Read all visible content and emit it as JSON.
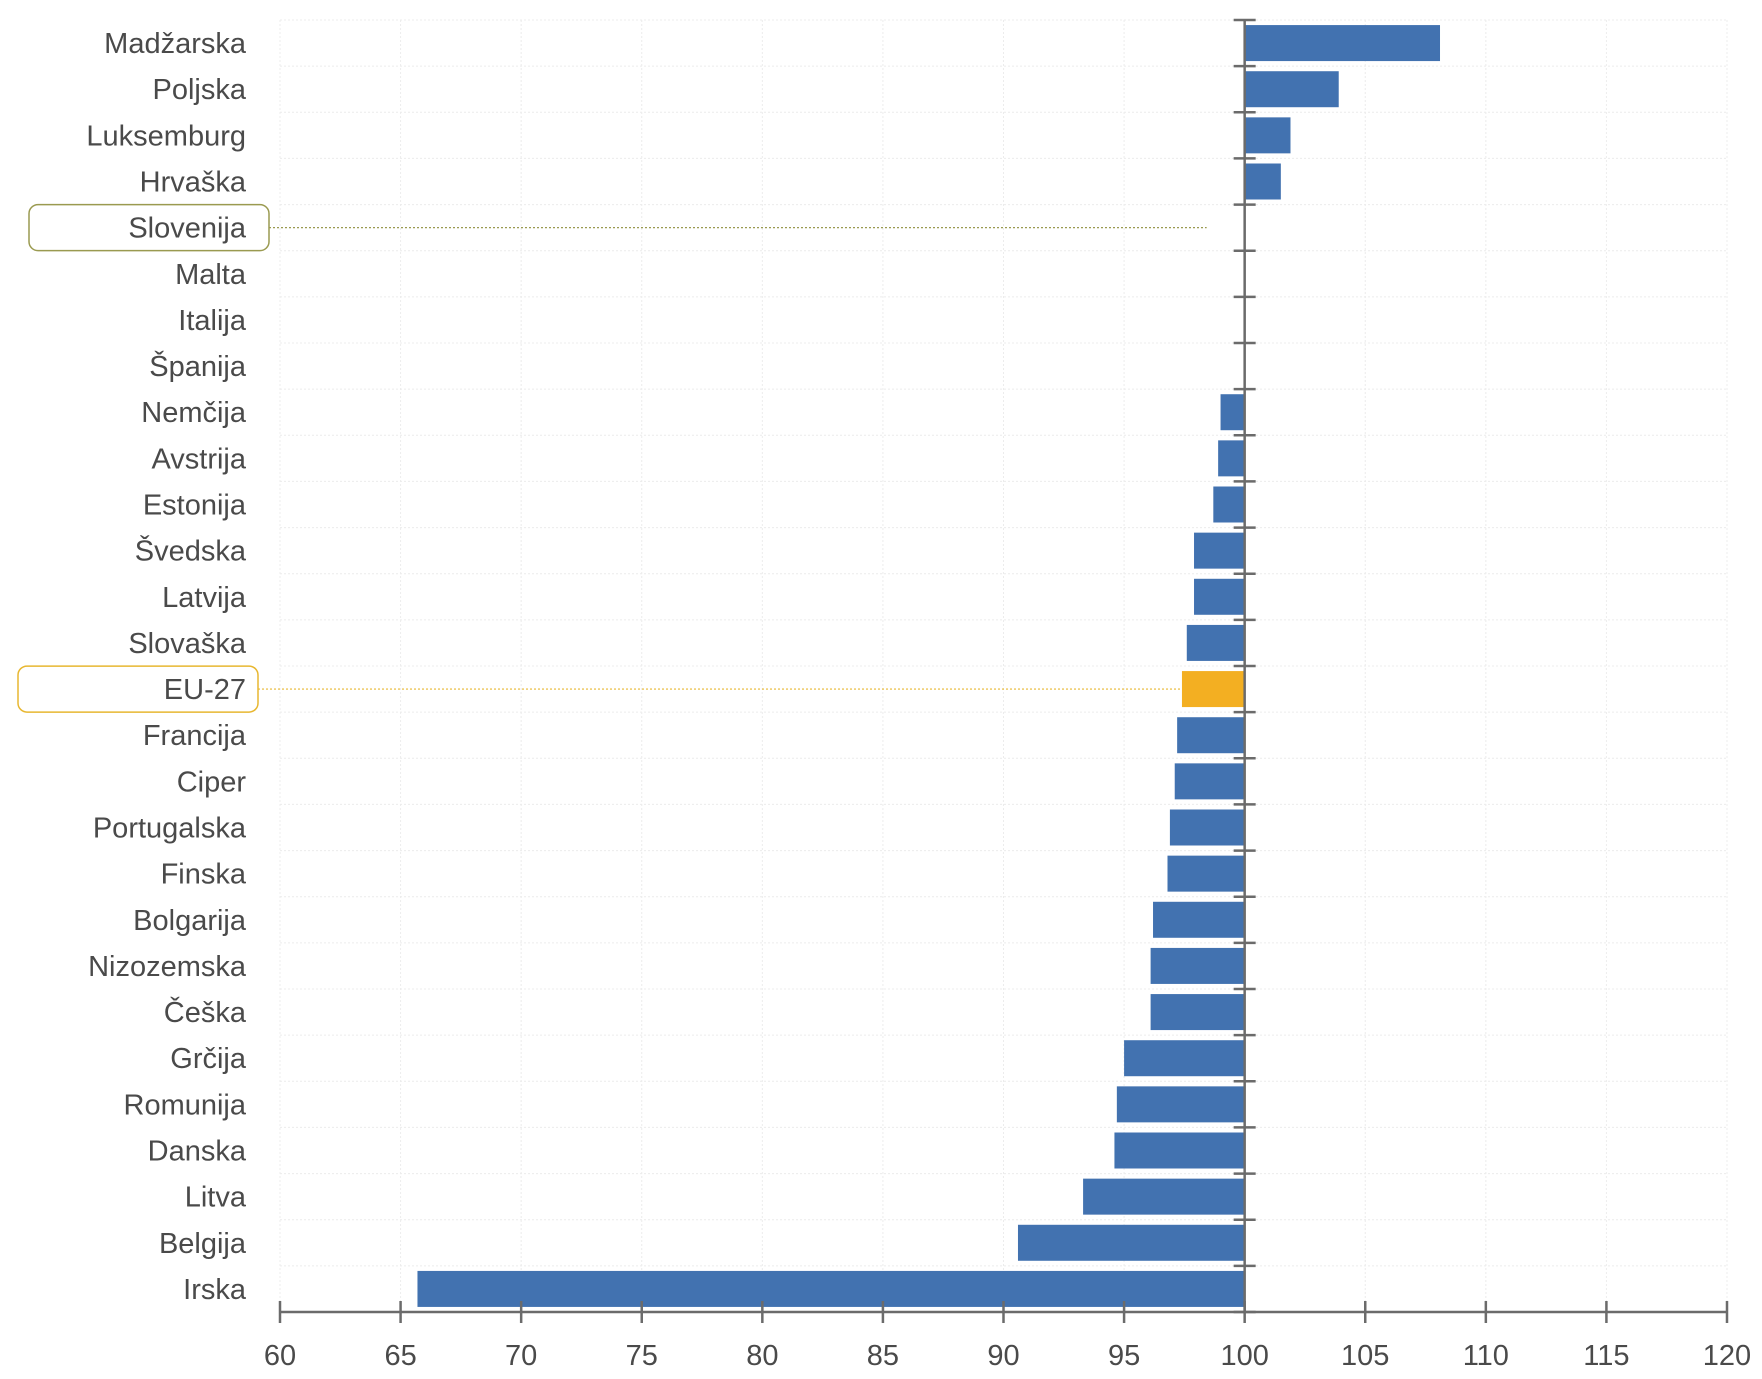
{
  "chart_data": {
    "type": "bar",
    "orientation": "horizontal",
    "baseline": 100,
    "categories": [
      "Madžarska",
      "Poljska",
      "Luksemburg",
      "Hrvaška",
      "Slovenija",
      "Malta",
      "Italija",
      "Španija",
      "Nemčija",
      "Avstrija",
      "Estonija",
      "Švedska",
      "Latvija",
      "Slovaška",
      "EU-27",
      "Francija",
      "Ciper",
      "Portugalska",
      "Finska",
      "Bolgarija",
      "Nizozemska",
      "Češka",
      "Grčija",
      "Romunija",
      "Danska",
      "Litva",
      "Belgija",
      "Irska"
    ],
    "values": [
      108.1,
      103.9,
      101.9,
      101.5,
      100.0,
      100.0,
      100.0,
      100.0,
      99.0,
      98.9,
      98.7,
      97.9,
      97.9,
      97.6,
      97.4,
      97.2,
      97.1,
      96.9,
      96.8,
      96.2,
      96.1,
      96.1,
      95.0,
      94.7,
      94.6,
      93.3,
      90.6,
      65.7
    ],
    "highlighted": [
      "Slovenija",
      "EU-27"
    ],
    "xlim": [
      60,
      120
    ],
    "xticks": [
      60,
      65,
      70,
      75,
      80,
      85,
      90,
      95,
      100,
      105,
      110,
      115,
      120
    ],
    "grid": true,
    "colors": {
      "bar": "#4272B0",
      "highlight_bar": "#F3AF22",
      "slovenija_outline": "#9A9A50",
      "eu_outline": "#E8B730",
      "axis": "#6b6b6b",
      "grid": "#ececec"
    }
  }
}
